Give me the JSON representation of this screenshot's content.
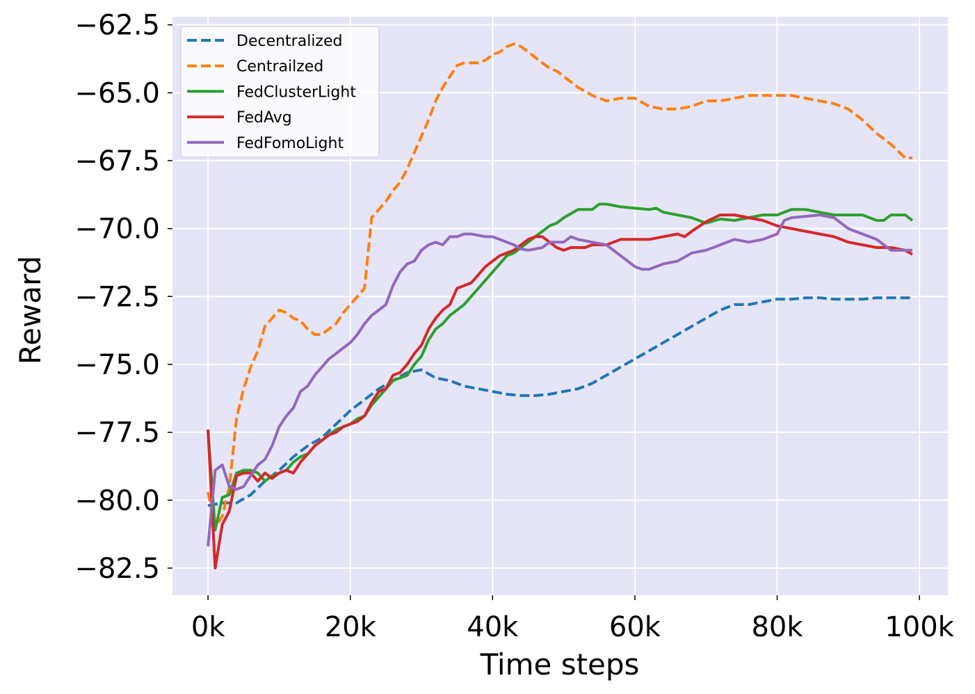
{
  "chart_data": {
    "type": "line",
    "title": "",
    "xlabel": "Time steps",
    "ylabel": "Reward",
    "xlim": [
      -5000,
      104000
    ],
    "ylim": [
      -83.5,
      -62.2
    ],
    "x_ticks": [
      0,
      20000,
      40000,
      60000,
      80000,
      100000
    ],
    "x_tick_labels": [
      "0k",
      "20k",
      "40k",
      "60k",
      "80k",
      "100k"
    ],
    "y_ticks": [
      -82.5,
      -80.0,
      -77.5,
      -75.0,
      -72.5,
      -70.0,
      -67.5,
      -65.0,
      -62.5
    ],
    "y_tick_labels": [
      "−82.5",
      "−80.0",
      "−77.5",
      "−75.0",
      "−72.5",
      "−70.0",
      "−67.5",
      "−65.0",
      "−62.5"
    ],
    "grid": true,
    "legend_position": "top-left",
    "background": "#e5e5f7",
    "series": [
      {
        "name": "Decentralized",
        "color": "#1f77b4",
        "dash": true,
        "x": [
          0,
          2000,
          4000,
          6000,
          8000,
          10000,
          12000,
          14000,
          16000,
          18000,
          20000,
          22000,
          24000,
          26000,
          28000,
          30000,
          32000,
          34000,
          36000,
          38000,
          40000,
          42000,
          44000,
          46000,
          48000,
          50000,
          52000,
          54000,
          56000,
          58000,
          60000,
          62000,
          64000,
          66000,
          68000,
          70000,
          72000,
          74000,
          76000,
          78000,
          80000,
          82000,
          84000,
          86000,
          88000,
          90000,
          92000,
          94000,
          96000,
          98000,
          99000
        ],
        "values": [
          -80.2,
          -80.1,
          -80.1,
          -79.8,
          -79.3,
          -78.9,
          -78.4,
          -78.0,
          -77.7,
          -77.2,
          -76.7,
          -76.3,
          -75.9,
          -75.6,
          -75.3,
          -75.2,
          -75.5,
          -75.6,
          -75.8,
          -75.9,
          -76.0,
          -76.1,
          -76.15,
          -76.15,
          -76.1,
          -76.0,
          -75.9,
          -75.7,
          -75.4,
          -75.1,
          -74.8,
          -74.5,
          -74.2,
          -73.9,
          -73.6,
          -73.3,
          -73.0,
          -72.8,
          -72.8,
          -72.7,
          -72.6,
          -72.6,
          -72.55,
          -72.55,
          -72.6,
          -72.6,
          -72.6,
          -72.55,
          -72.55,
          -72.55,
          -72.55
        ]
      },
      {
        "name": "Centrailzed",
        "color": "#ff7f0e",
        "dash": true,
        "x": [
          0,
          1000,
          2000,
          3000,
          4000,
          5000,
          6000,
          7000,
          8000,
          9000,
          10000,
          11000,
          12000,
          13000,
          14000,
          15000,
          16000,
          17000,
          18000,
          19000,
          20000,
          21000,
          22000,
          23000,
          24000,
          25000,
          26000,
          27000,
          28000,
          29000,
          30000,
          31000,
          32000,
          33000,
          34000,
          35000,
          36000,
          37000,
          38000,
          39000,
          40000,
          41000,
          42000,
          43000,
          44000,
          45000,
          46000,
          47000,
          48000,
          49000,
          50000,
          52000,
          54000,
          56000,
          58000,
          60000,
          62000,
          64000,
          66000,
          68000,
          70000,
          72000,
          74000,
          76000,
          78000,
          80000,
          82000,
          84000,
          86000,
          88000,
          90000,
          92000,
          94000,
          96000,
          98000,
          99000
        ],
        "values": [
          -79.7,
          -81.0,
          -80.6,
          -79.5,
          -77.0,
          -75.9,
          -75.1,
          -74.5,
          -73.6,
          -73.3,
          -73.0,
          -73.1,
          -73.3,
          -73.4,
          -73.7,
          -73.9,
          -73.9,
          -73.7,
          -73.5,
          -73.1,
          -72.8,
          -72.5,
          -72.2,
          -69.6,
          -69.3,
          -69.0,
          -68.6,
          -68.3,
          -67.8,
          -67.2,
          -66.6,
          -66.0,
          -65.3,
          -64.8,
          -64.4,
          -64.0,
          -63.9,
          -63.9,
          -63.9,
          -63.8,
          -63.6,
          -63.5,
          -63.3,
          -63.2,
          -63.3,
          -63.5,
          -63.7,
          -63.9,
          -64.1,
          -64.2,
          -64.4,
          -64.8,
          -65.1,
          -65.3,
          -65.2,
          -65.2,
          -65.5,
          -65.6,
          -65.6,
          -65.5,
          -65.3,
          -65.3,
          -65.2,
          -65.1,
          -65.1,
          -65.1,
          -65.1,
          -65.2,
          -65.3,
          -65.4,
          -65.6,
          -66.0,
          -66.5,
          -66.9,
          -67.4,
          -67.4
        ]
      },
      {
        "name": "FedClusterLight",
        "color": "#2ca02c",
        "dash": false,
        "x": [
          0,
          1000,
          2000,
          3000,
          4000,
          5000,
          6000,
          7000,
          8000,
          9000,
          10000,
          11000,
          12000,
          13000,
          14000,
          15000,
          16000,
          17000,
          18000,
          19000,
          20000,
          21000,
          22000,
          23000,
          24000,
          25000,
          26000,
          27000,
          28000,
          29000,
          30000,
          31000,
          32000,
          33000,
          34000,
          35000,
          36000,
          37000,
          38000,
          39000,
          40000,
          41000,
          42000,
          43000,
          44000,
          45000,
          46000,
          47000,
          48000,
          49000,
          50000,
          52000,
          54000,
          55000,
          56000,
          58000,
          60000,
          62000,
          63000,
          64000,
          66000,
          68000,
          70000,
          72000,
          74000,
          76000,
          78000,
          80000,
          82000,
          84000,
          86000,
          88000,
          90000,
          92000,
          94000,
          95000,
          96000,
          98000,
          99000
        ],
        "values": [
          -77.4,
          -81.1,
          -79.9,
          -79.8,
          -79.0,
          -78.9,
          -78.9,
          -79.0,
          -79.3,
          -79.1,
          -79.0,
          -78.9,
          -78.6,
          -78.4,
          -78.3,
          -78.0,
          -77.8,
          -77.6,
          -77.4,
          -77.3,
          -77.2,
          -77.0,
          -76.9,
          -76.5,
          -76.2,
          -75.9,
          -75.6,
          -75.5,
          -75.4,
          -75.0,
          -74.7,
          -74.1,
          -73.7,
          -73.5,
          -73.2,
          -73.0,
          -72.8,
          -72.5,
          -72.2,
          -71.9,
          -71.6,
          -71.3,
          -71.0,
          -70.9,
          -70.7,
          -70.5,
          -70.3,
          -70.1,
          -69.9,
          -69.8,
          -69.6,
          -69.3,
          -69.3,
          -69.1,
          -69.1,
          -69.2,
          -69.25,
          -69.3,
          -69.25,
          -69.4,
          -69.5,
          -69.6,
          -69.8,
          -69.65,
          -69.7,
          -69.6,
          -69.5,
          -69.5,
          -69.3,
          -69.3,
          -69.4,
          -69.5,
          -69.5,
          -69.5,
          -69.7,
          -69.7,
          -69.5,
          -69.5,
          -69.7
        ]
      },
      {
        "name": "FedAvg",
        "color": "#d62728",
        "dash": false,
        "x": [
          0,
          1000,
          2000,
          3000,
          4000,
          5000,
          6000,
          7000,
          8000,
          9000,
          10000,
          11000,
          12000,
          13000,
          14000,
          15000,
          16000,
          17000,
          18000,
          19000,
          20000,
          21000,
          22000,
          23000,
          24000,
          25000,
          26000,
          27000,
          28000,
          29000,
          30000,
          31000,
          32000,
          33000,
          34000,
          35000,
          36000,
          37000,
          38000,
          39000,
          40000,
          41000,
          42000,
          43000,
          44000,
          45000,
          46000,
          47000,
          48000,
          49000,
          50000,
          51000,
          52000,
          53000,
          54000,
          56000,
          58000,
          60000,
          62000,
          64000,
          66000,
          67000,
          68000,
          70000,
          72000,
          74000,
          76000,
          78000,
          80000,
          82000,
          84000,
          86000,
          88000,
          90000,
          92000,
          94000,
          96000,
          98000,
          99000
        ],
        "values": [
          -77.4,
          -82.5,
          -80.9,
          -80.4,
          -79.1,
          -79.0,
          -79.0,
          -79.3,
          -79.0,
          -79.2,
          -79.0,
          -78.9,
          -79.0,
          -78.6,
          -78.3,
          -78.0,
          -77.8,
          -77.6,
          -77.5,
          -77.3,
          -77.2,
          -77.1,
          -76.9,
          -76.4,
          -76.0,
          -75.9,
          -75.4,
          -75.3,
          -75.0,
          -74.6,
          -74.3,
          -73.7,
          -73.3,
          -73.0,
          -72.8,
          -72.2,
          -72.1,
          -72.0,
          -71.7,
          -71.4,
          -71.2,
          -71.0,
          -70.9,
          -70.8,
          -70.6,
          -70.4,
          -70.3,
          -70.3,
          -70.5,
          -70.7,
          -70.8,
          -70.7,
          -70.7,
          -70.7,
          -70.6,
          -70.6,
          -70.4,
          -70.4,
          -70.4,
          -70.3,
          -70.2,
          -70.3,
          -70.1,
          -69.75,
          -69.5,
          -69.5,
          -69.6,
          -69.7,
          -69.9,
          -70.0,
          -70.1,
          -70.2,
          -70.3,
          -70.5,
          -70.6,
          -70.7,
          -70.7,
          -70.8,
          -70.95
        ]
      },
      {
        "name": "FedFomoLight",
        "color": "#9467bd",
        "dash": false,
        "x": [
          0,
          1000,
          2000,
          3000,
          4000,
          5000,
          6000,
          7000,
          8000,
          9000,
          10000,
          11000,
          12000,
          13000,
          14000,
          15000,
          16000,
          17000,
          18000,
          19000,
          20000,
          21000,
          22000,
          23000,
          24000,
          25000,
          26000,
          27000,
          28000,
          29000,
          30000,
          31000,
          32000,
          33000,
          34000,
          35000,
          36000,
          37000,
          38000,
          39000,
          40000,
          41000,
          42000,
          43000,
          44000,
          45000,
          46000,
          47000,
          48000,
          49000,
          50000,
          51000,
          52000,
          54000,
          56000,
          58000,
          60000,
          61000,
          62000,
          64000,
          66000,
          68000,
          70000,
          72000,
          74000,
          76000,
          78000,
          80000,
          81000,
          82000,
          84000,
          86000,
          88000,
          90000,
          92000,
          94000,
          95000,
          96000,
          98000,
          99000
        ],
        "values": [
          -81.7,
          -78.9,
          -78.7,
          -79.5,
          -79.6,
          -79.5,
          -79.1,
          -78.7,
          -78.5,
          -78.0,
          -77.3,
          -76.9,
          -76.6,
          -76.0,
          -75.8,
          -75.4,
          -75.1,
          -74.8,
          -74.6,
          -74.4,
          -74.2,
          -73.9,
          -73.5,
          -73.2,
          -73.0,
          -72.8,
          -72.1,
          -71.6,
          -71.3,
          -71.2,
          -70.8,
          -70.6,
          -70.5,
          -70.6,
          -70.3,
          -70.3,
          -70.2,
          -70.2,
          -70.25,
          -70.3,
          -70.3,
          -70.4,
          -70.5,
          -70.6,
          -70.75,
          -70.8,
          -70.75,
          -70.7,
          -70.5,
          -70.5,
          -70.5,
          -70.3,
          -70.4,
          -70.5,
          -70.6,
          -71.0,
          -71.4,
          -71.5,
          -71.5,
          -71.3,
          -71.2,
          -70.9,
          -70.8,
          -70.6,
          -70.4,
          -70.5,
          -70.4,
          -70.2,
          -69.7,
          -69.6,
          -69.55,
          -69.5,
          -69.6,
          -70.0,
          -70.2,
          -70.4,
          -70.6,
          -70.8,
          -70.8,
          -70.8
        ]
      }
    ]
  }
}
